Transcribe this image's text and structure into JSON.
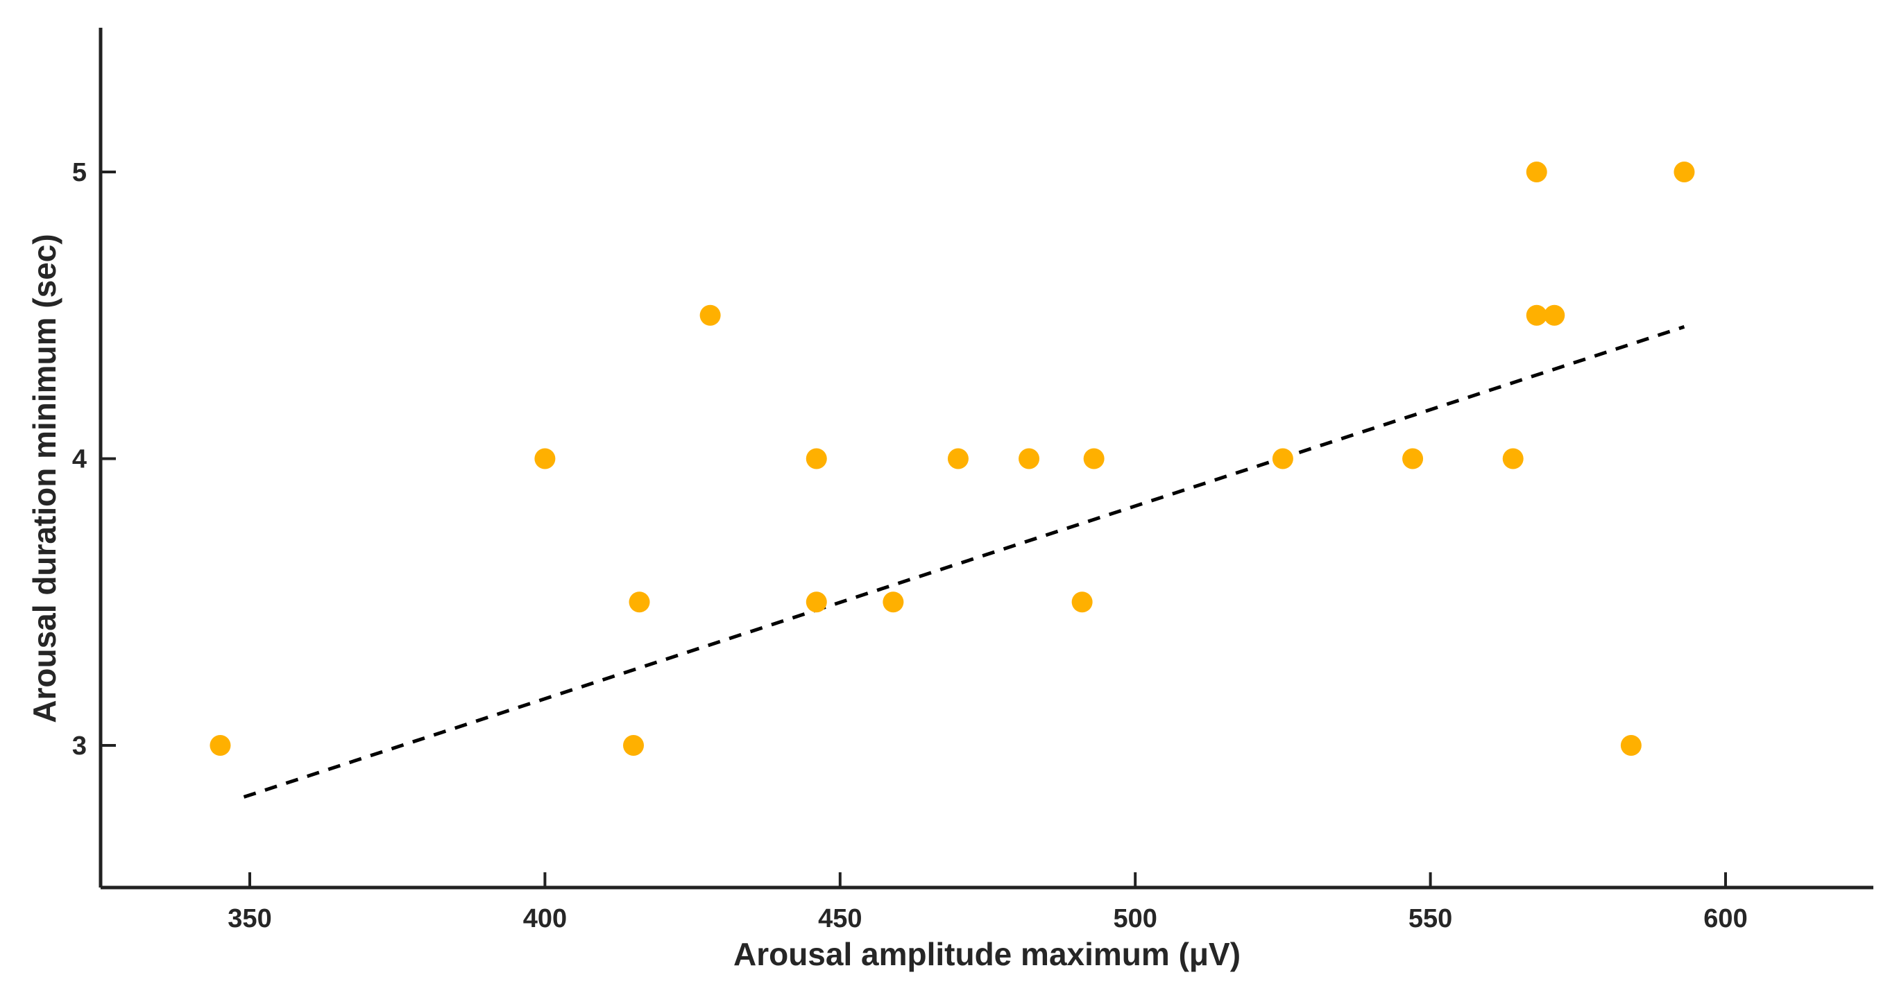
{
  "chart_data": {
    "type": "scatter",
    "title": "",
    "xlabel": "Arousal amplitude maximum (μV)",
    "ylabel": "Arousal duration minimum (sec)",
    "xlim": [
      326,
      626
    ],
    "ylim": [
      2.5,
      5.5
    ],
    "xticks": [
      350,
      400,
      450,
      500,
      550,
      600
    ],
    "yticks": [
      3,
      4,
      5
    ],
    "grid": false,
    "marker_color": "#FFB000",
    "trend_color": "#000000",
    "axis_color": "#222222",
    "series": [
      {
        "name": "subjects",
        "points": [
          {
            "x": 345,
            "y": 3.0
          },
          {
            "x": 400,
            "y": 4.0
          },
          {
            "x": 415,
            "y": 3.0
          },
          {
            "x": 416,
            "y": 3.5
          },
          {
            "x": 428,
            "y": 4.5
          },
          {
            "x": 446,
            "y": 4.0
          },
          {
            "x": 446,
            "y": 3.5
          },
          {
            "x": 459,
            "y": 3.5
          },
          {
            "x": 470,
            "y": 4.0
          },
          {
            "x": 482,
            "y": 4.0
          },
          {
            "x": 491,
            "y": 3.5
          },
          {
            "x": 493,
            "y": 4.0
          },
          {
            "x": 525,
            "y": 4.0
          },
          {
            "x": 547,
            "y": 4.0
          },
          {
            "x": 564,
            "y": 4.0
          },
          {
            "x": 568,
            "y": 5.0
          },
          {
            "x": 568,
            "y": 4.5
          },
          {
            "x": 571,
            "y": 4.5
          },
          {
            "x": 584,
            "y": 3.0
          },
          {
            "x": 593,
            "y": 5.0
          }
        ]
      }
    ],
    "trend_line": {
      "style": "dashed",
      "start": {
        "x": 349,
        "y": 2.82
      },
      "end": {
        "x": 593,
        "y": 4.46
      }
    }
  }
}
